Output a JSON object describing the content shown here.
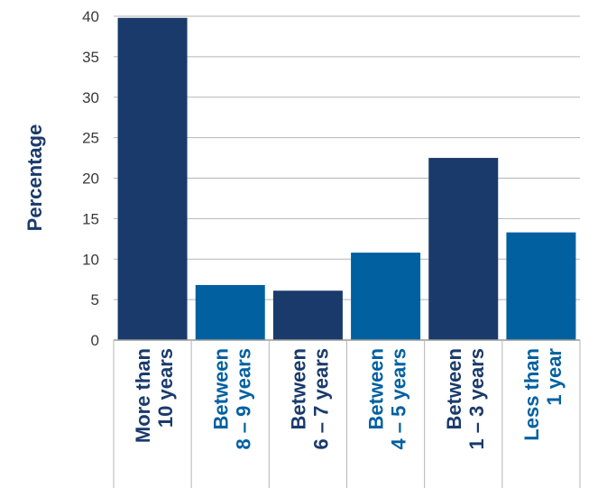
{
  "chart_data": {
    "type": "bar",
    "title": "",
    "xlabel": "",
    "ylabel": "Percentage",
    "ylim": [
      0,
      40
    ],
    "yticks": [
      "0",
      "5",
      "10",
      "15",
      "20",
      "25",
      "30",
      "35",
      "40"
    ],
    "grid": true,
    "categories": [
      [
        "More than",
        "10 years"
      ],
      [
        "Between",
        "8 – 9 years"
      ],
      [
        "Between",
        "6 – 7 years"
      ],
      [
        "Between",
        "4 – 5 years"
      ],
      [
        "Between",
        "1 – 3 years"
      ],
      [
        "Less than",
        "1 year"
      ]
    ],
    "values": [
      39.8,
      6.8,
      6.1,
      10.8,
      22.5,
      13.3
    ],
    "colors": [
      "#1a3a6b",
      "#0060a0",
      "#1a3a6b",
      "#0060a0",
      "#1a3a6b",
      "#0060a0"
    ]
  }
}
